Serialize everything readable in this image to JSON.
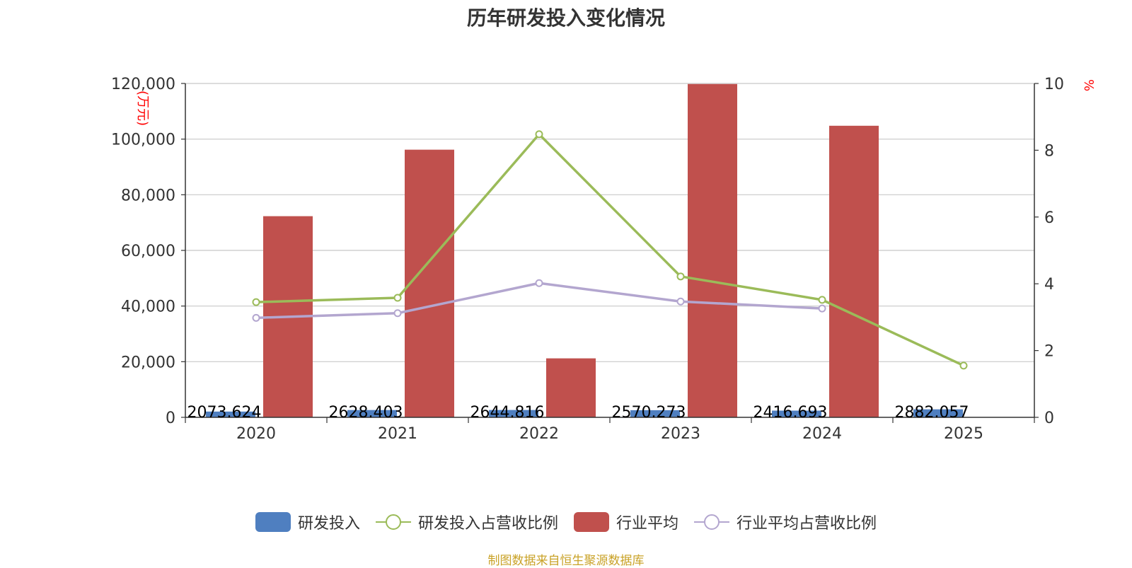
{
  "title": "历年研发投入变化情况",
  "source": "制图数据来自恒生聚源数据库",
  "colors": {
    "rd_bar": "#4f7fc0",
    "industry_bar": "#c0504d",
    "rd_ratio_line": "#9bbb59",
    "industry_ratio_line": "#b3a6cf",
    "axis_unit": "#ff0000"
  },
  "chart_data": {
    "type": "bar",
    "categories": [
      "2020",
      "2021",
      "2022",
      "2023",
      "2024",
      "2025"
    ],
    "left_axis": {
      "label": "万元",
      "ylim": [
        0,
        120000
      ],
      "ticks": [
        0,
        20000,
        40000,
        60000,
        80000,
        100000,
        120000
      ],
      "tick_labels": [
        "0",
        "20,000",
        "40,000",
        "60,000",
        "80,000",
        "100,000",
        "120,000"
      ]
    },
    "right_axis": {
      "label": "%",
      "ylim": [
        0,
        10
      ],
      "ticks": [
        0,
        2,
        4,
        6,
        8,
        10
      ],
      "tick_labels": [
        "0",
        "2",
        "4",
        "6",
        "8",
        "10"
      ]
    },
    "grid": true,
    "legend_position": "bottom",
    "series": [
      {
        "name": "研发投入",
        "type": "bar",
        "axis": "left",
        "values": [
          2073.624,
          2628.403,
          2644.816,
          2570.273,
          2416.693,
          2882.057
        ],
        "data_labels": [
          "2073.624",
          "2628.403",
          "2644.816",
          "2570.273",
          "2416.693",
          "2882.057"
        ]
      },
      {
        "name": "研发投入占营收比例",
        "type": "line",
        "axis": "right",
        "values": [
          3.45,
          3.58,
          8.48,
          4.22,
          3.52,
          1.55
        ]
      },
      {
        "name": "行业平均",
        "type": "bar",
        "axis": "left",
        "values": [
          72300,
          96200,
          21200,
          119800,
          104800,
          null
        ]
      },
      {
        "name": "行业平均占营收比例",
        "type": "line",
        "axis": "right",
        "values": [
          2.98,
          3.12,
          4.02,
          3.47,
          3.26,
          null
        ]
      }
    ]
  }
}
